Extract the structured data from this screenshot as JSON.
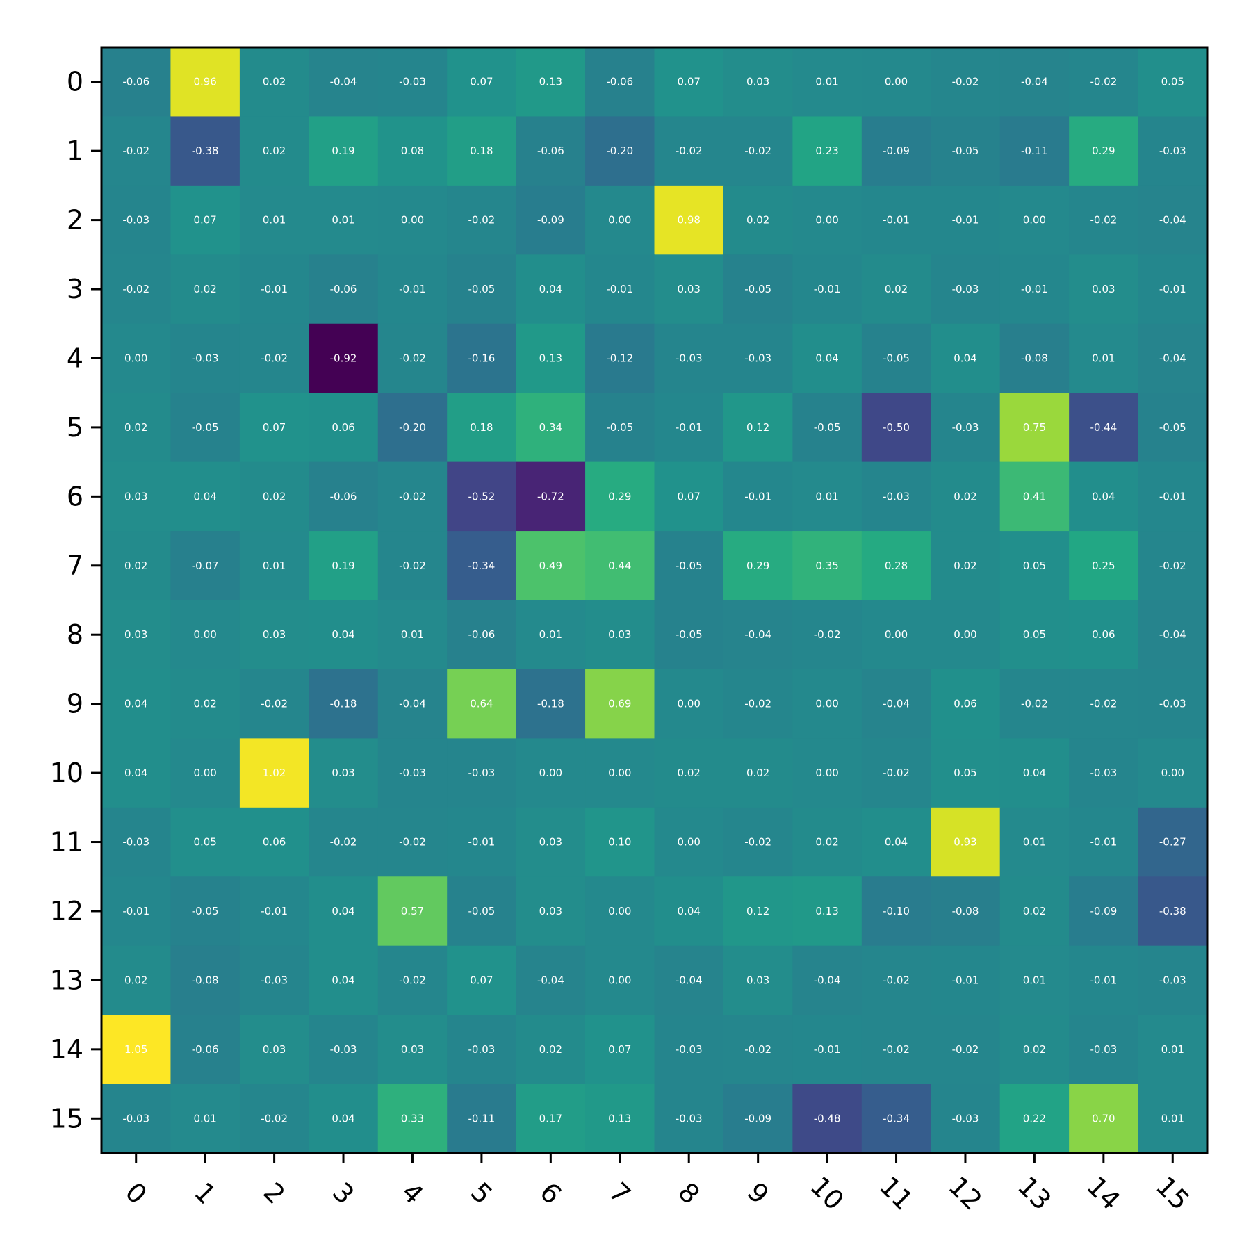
{
  "chart_data": {
    "type": "heatmap",
    "title": "",
    "xlabel": "",
    "ylabel": "",
    "x_categories": [
      "0",
      "1",
      "2",
      "3",
      "4",
      "5",
      "6",
      "7",
      "8",
      "9",
      "10",
      "11",
      "12",
      "13",
      "14",
      "15"
    ],
    "y_categories": [
      "0",
      "1",
      "2",
      "3",
      "4",
      "5",
      "6",
      "7",
      "8",
      "9",
      "10",
      "11",
      "12",
      "13",
      "14",
      "15"
    ],
    "colormap": "viridis",
    "vmin": -0.92,
    "vmax": 1.05,
    "grid": false,
    "values": [
      [
        -0.06,
        0.96,
        0.02,
        -0.04,
        -0.03,
        0.07,
        0.13,
        -0.06,
        0.07,
        0.03,
        0.01,
        0.0,
        -0.02,
        -0.04,
        -0.02,
        0.05
      ],
      [
        -0.02,
        -0.38,
        0.02,
        0.19,
        0.08,
        0.18,
        -0.06,
        -0.2,
        -0.02,
        -0.02,
        0.23,
        -0.09,
        -0.05,
        -0.11,
        0.29,
        -0.03
      ],
      [
        -0.03,
        0.07,
        0.01,
        0.01,
        0.0,
        -0.02,
        -0.09,
        -0.0,
        0.98,
        0.02,
        0.0,
        -0.01,
        -0.01,
        -0.0,
        -0.02,
        -0.04
      ],
      [
        -0.02,
        0.02,
        -0.01,
        -0.06,
        -0.01,
        -0.05,
        0.04,
        -0.01,
        0.03,
        -0.05,
        -0.01,
        0.02,
        -0.03,
        -0.01,
        0.03,
        -0.01
      ],
      [
        0.0,
        -0.03,
        -0.02,
        -0.92,
        -0.02,
        -0.16,
        0.13,
        -0.12,
        -0.03,
        -0.03,
        0.04,
        -0.05,
        0.04,
        -0.08,
        0.01,
        -0.04
      ],
      [
        0.02,
        -0.05,
        0.07,
        0.06,
        -0.2,
        0.18,
        0.34,
        -0.05,
        -0.01,
        0.12,
        -0.05,
        -0.5,
        -0.03,
        0.75,
        -0.44,
        -0.05
      ],
      [
        0.03,
        0.04,
        0.02,
        -0.06,
        -0.02,
        -0.52,
        -0.72,
        0.29,
        0.07,
        -0.01,
        0.01,
        -0.03,
        0.02,
        0.41,
        0.04,
        -0.01
      ],
      [
        0.02,
        -0.07,
        0.01,
        0.19,
        -0.02,
        -0.34,
        0.49,
        0.44,
        -0.05,
        0.29,
        0.35,
        0.28,
        0.02,
        0.05,
        0.25,
        -0.02
      ],
      [
        0.03,
        -0.0,
        0.03,
        0.04,
        0.01,
        -0.06,
        0.01,
        0.03,
        -0.05,
        -0.04,
        -0.02,
        -0.0,
        0.0,
        0.05,
        0.06,
        -0.04
      ],
      [
        0.04,
        0.02,
        -0.02,
        -0.18,
        -0.04,
        0.64,
        -0.18,
        0.69,
        -0.0,
        -0.02,
        0.0,
        -0.04,
        0.06,
        -0.02,
        -0.02,
        -0.03
      ],
      [
        0.04,
        0.0,
        1.02,
        0.03,
        -0.03,
        -0.03,
        0.0,
        -0.0,
        0.02,
        0.02,
        0.0,
        -0.02,
        0.05,
        0.04,
        -0.03,
        -0.0
      ],
      [
        -0.03,
        0.05,
        0.06,
        -0.02,
        -0.02,
        -0.01,
        0.03,
        0.1,
        -0.0,
        -0.02,
        0.02,
        0.04,
        0.93,
        0.01,
        -0.01,
        -0.27
      ],
      [
        -0.01,
        -0.05,
        -0.01,
        0.04,
        0.57,
        -0.05,
        0.03,
        -0.0,
        0.04,
        0.12,
        0.13,
        -0.1,
        -0.08,
        0.02,
        -0.09,
        -0.38
      ],
      [
        0.02,
        -0.08,
        -0.03,
        0.04,
        -0.02,
        0.07,
        -0.04,
        0.0,
        -0.04,
        0.03,
        -0.04,
        -0.02,
        -0.01,
        0.01,
        -0.01,
        -0.03
      ],
      [
        1.05,
        -0.06,
        0.03,
        -0.03,
        0.03,
        -0.03,
        0.02,
        0.07,
        -0.03,
        -0.02,
        -0.01,
        -0.02,
        -0.02,
        0.02,
        -0.03,
        0.01
      ],
      [
        -0.03,
        0.01,
        -0.02,
        0.04,
        0.33,
        -0.11,
        0.17,
        0.13,
        -0.03,
        -0.09,
        -0.48,
        -0.34,
        -0.03,
        0.22,
        0.7,
        0.01
      ]
    ]
  }
}
